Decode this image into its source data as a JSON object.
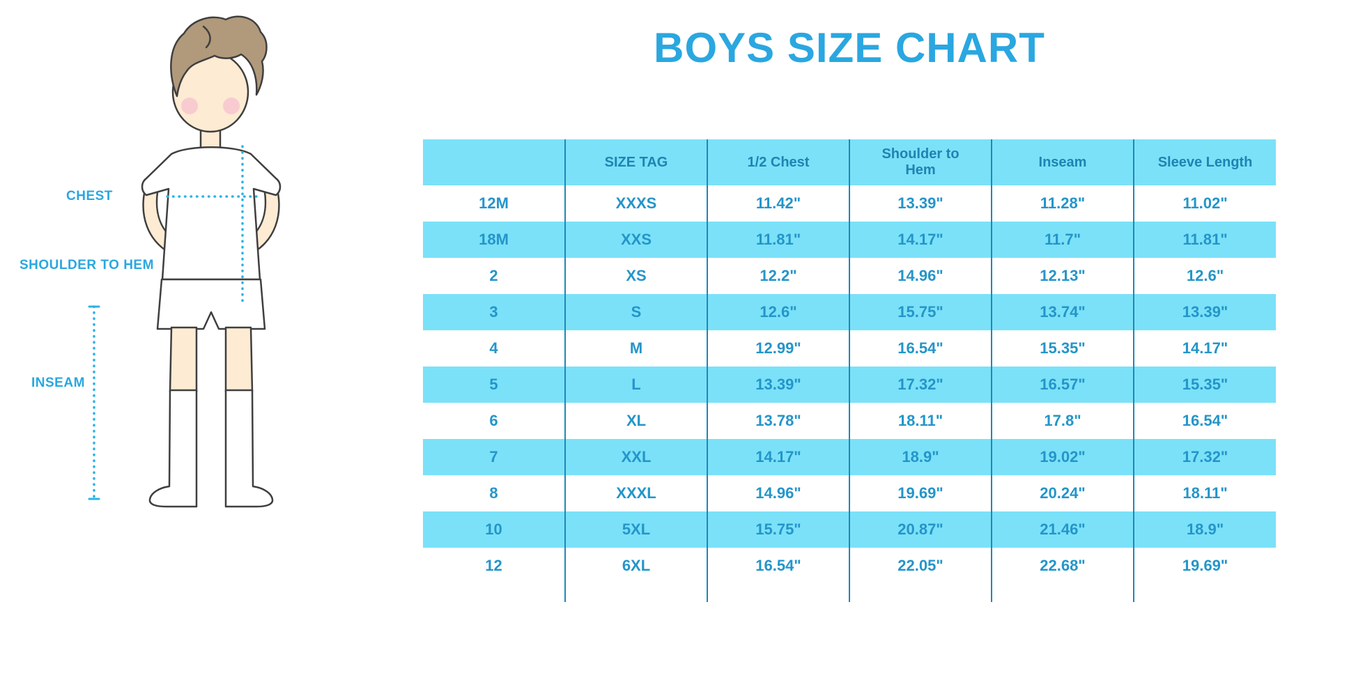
{
  "title": "BOYS SIZE CHART",
  "figure": {
    "labels": {
      "chest": "CHEST",
      "shoulder_to_hem": "SHOULDER TO HEM",
      "inseam": "INSEAM"
    }
  },
  "colors": {
    "title_blue": "#2aa7e0",
    "label_blue": "#2aa7e0",
    "band_cyan": "#7be1f8",
    "grid_blue": "#1e88b8",
    "header_text": "#1e84b2",
    "cell_text": "#2495c9",
    "measure_line": "#2bb3e6",
    "skin": "#fdebd3",
    "hair": "#b1997b",
    "blush": "#f8cbd0",
    "outline": "#3f3f3f"
  },
  "chart_data": {
    "type": "table",
    "title": "BOYS SIZE CHART",
    "columns": [
      "",
      "SIZE TAG",
      "1/2 Chest",
      "Shoulder to Hem",
      "Inseam",
      "Sleeve Length"
    ],
    "rows": [
      [
        "12M",
        "XXXS",
        "11.42\"",
        "13.39\"",
        "11.28\"",
        "11.02\""
      ],
      [
        "18M",
        "XXS",
        "11.81\"",
        "14.17\"",
        "11.7\"",
        "11.81\""
      ],
      [
        "2",
        "XS",
        "12.2\"",
        "14.96\"",
        "12.13\"",
        "12.6\""
      ],
      [
        "3",
        "S",
        "12.6\"",
        "15.75\"",
        "13.74\"",
        "13.39\""
      ],
      [
        "4",
        "M",
        "12.99\"",
        "16.54\"",
        "15.35\"",
        "14.17\""
      ],
      [
        "5",
        "L",
        "13.39\"",
        "17.32\"",
        "16.57\"",
        "15.35\""
      ],
      [
        "6",
        "XL",
        "13.78\"",
        "18.11\"",
        "17.8\"",
        "16.54\""
      ],
      [
        "7",
        "XXL",
        "14.17\"",
        "18.9\"",
        "19.02\"",
        "17.32\""
      ],
      [
        "8",
        "XXXL",
        "14.96\"",
        "19.69\"",
        "20.24\"",
        "18.11\""
      ],
      [
        "10",
        "5XL",
        "15.75\"",
        "20.87\"",
        "21.46\"",
        "18.9\""
      ],
      [
        "12",
        "6XL",
        "16.54\"",
        "22.05\"",
        "22.68\"",
        "19.69\""
      ]
    ],
    "row_banding": "alternating white / cyan starting white",
    "legend_position": "none",
    "grid": "vertical column separators only"
  }
}
